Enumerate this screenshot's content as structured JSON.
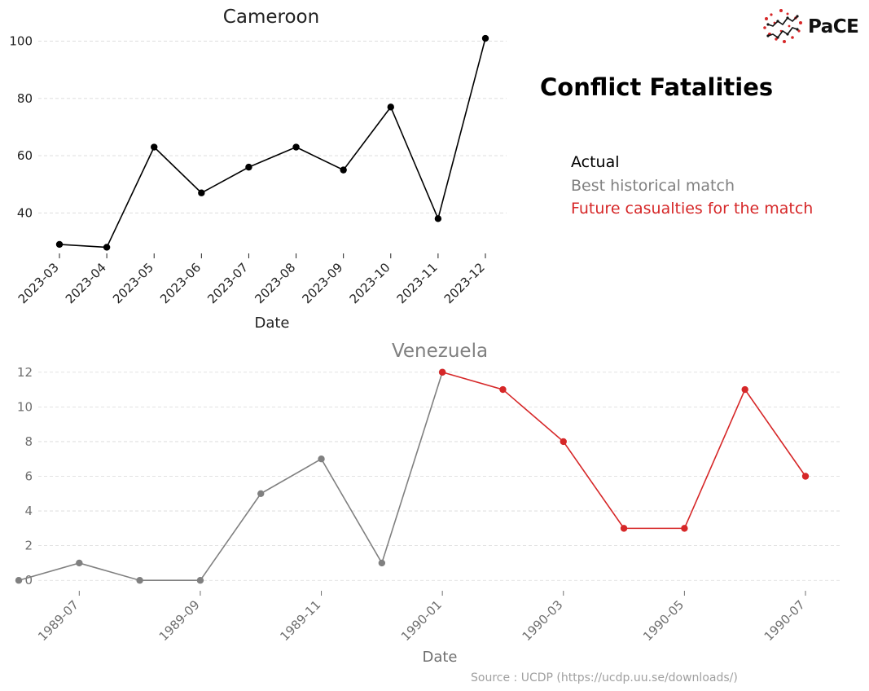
{
  "figure": {
    "title": "Conflict Fatalities",
    "source": "Source : UCDP (https://ucdp.uu.se/downloads/)",
    "logo_text": "PaCE",
    "legend": [
      {
        "label": "Actual",
        "color": "#000000"
      },
      {
        "label": "Best historical match",
        "color": "#808080"
      },
      {
        "label": "Future casualties for the match",
        "color": "#d62728"
      }
    ]
  },
  "chart_data": [
    {
      "type": "line",
      "title": "Cameroon",
      "xlabel": "Date",
      "ylabel": "",
      "x": [
        "2023-03",
        "2023-04",
        "2023-05",
        "2023-06",
        "2023-07",
        "2023-08",
        "2023-09",
        "2023-10",
        "2023-11",
        "2023-12"
      ],
      "series": [
        {
          "values": [
            29,
            28,
            63,
            47,
            56,
            63,
            55,
            77,
            38,
            101
          ],
          "color": "#000000"
        }
      ],
      "yticks": [
        40,
        60,
        80,
        100
      ],
      "ylim": [
        25,
        105
      ],
      "grid": true
    },
    {
      "type": "line",
      "title": "Venezuela",
      "xlabel": "Date",
      "ylabel": "",
      "x": [
        "1989-06",
        "1989-07",
        "1989-08",
        "1989-09",
        "1989-10",
        "1989-11",
        "1989-12",
        "1990-01",
        "1990-02",
        "1990-03",
        "1990-04",
        "1990-05",
        "1990-06",
        "1990-07"
      ],
      "series": [
        {
          "name": "Best historical match",
          "color": "#808080",
          "x": [
            "1989-06",
            "1989-07",
            "1989-08",
            "1989-09",
            "1989-10",
            "1989-11",
            "1989-12",
            "1990-01"
          ],
          "values": [
            0,
            1,
            0,
            0,
            5,
            7,
            1,
            12
          ]
        },
        {
          "name": "Future casualties for the match",
          "color": "#d62728",
          "x": [
            "1990-01",
            "1990-02",
            "1990-03",
            "1990-04",
            "1990-05",
            "1990-06",
            "1990-07"
          ],
          "values": [
            12,
            11,
            8,
            3,
            3,
            11,
            6
          ]
        }
      ],
      "xticks": [
        "1989-07",
        "1989-09",
        "1989-11",
        "1990-01",
        "1990-03",
        "1990-05",
        "1990-07"
      ],
      "yticks": [
        0,
        2,
        4,
        6,
        8,
        10,
        12
      ],
      "ylim": [
        -0.6,
        12.6
      ],
      "grid": true
    }
  ]
}
